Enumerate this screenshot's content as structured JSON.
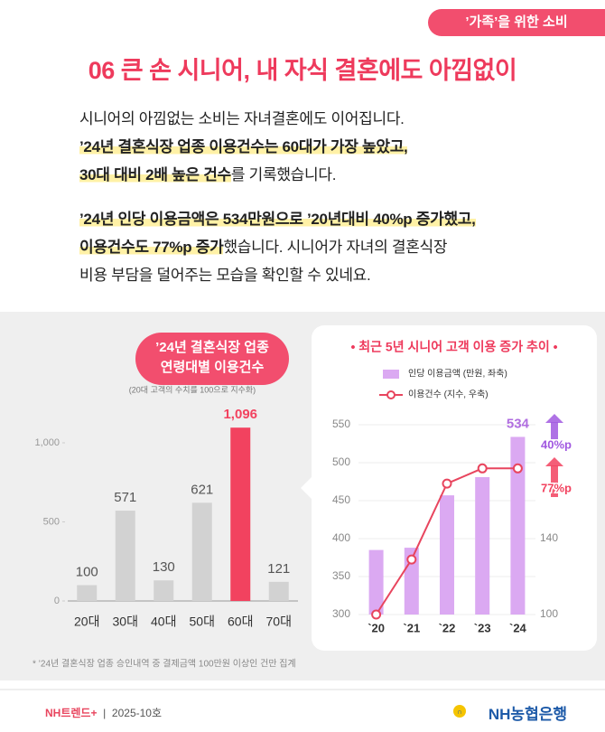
{
  "header": {
    "tag": "’가족’을 위한 소비",
    "title": "06 큰 손 시니어, 내 자식 결혼에도 아낌없이"
  },
  "body": {
    "paragraphs": [
      [
        [
          {
            "text": "시니어의 아낌없는 소비는 자녀결혼에도 이어집니다.",
            "highlight": false
          }
        ],
        [
          {
            "text": "’24년 결혼식장 업종 이용건수는 60대가 가장 높았고,",
            "highlight": true
          }
        ],
        [
          {
            "text": "30대 대비 2배 높은 건수",
            "highlight": true
          },
          {
            "text": "를 기록했습니다.",
            "highlight": false
          }
        ]
      ],
      [
        [
          {
            "text": "’24년 인당 이용금액은 534만원으로 ’20년대비 40%p 증가했고,",
            "highlight": true
          }
        ],
        [
          {
            "text": "이용건수도 77%p 증가",
            "highlight": true
          },
          {
            "text": "했습니다. 시니어가 자녀의 결혼식장",
            "highlight": false
          }
        ],
        [
          {
            "text": "비용 부담을 덜어주는 모습을 확인할 수 있네요.",
            "highlight": false
          }
        ]
      ]
    ]
  },
  "chart_data": [
    {
      "type": "bar",
      "title": [
        "’24년 결혼식장 업종",
        "연령대별 이용건수"
      ],
      "subtitle": "(20대 고객의 수치를 100으로 지수화)",
      "categories": [
        "20대",
        "30대",
        "40대",
        "50대",
        "60대",
        "70대"
      ],
      "values": [
        100,
        571,
        130,
        621,
        1096,
        121
      ],
      "value_labels": [
        "100",
        "571",
        "130",
        "621",
        "1,096",
        "121"
      ],
      "colors": [
        "#d2d2d2",
        "#d2d2d2",
        "#d2d2d2",
        "#d2d2d2",
        "#f2425f",
        "#d2d2d2"
      ],
      "label_colors": [
        "#555555",
        "#555555",
        "#555555",
        "#555555",
        "#f2425f",
        "#555555"
      ],
      "ylim": [
        0,
        1100
      ],
      "yticks": [
        0,
        500,
        {
          "value": 1000,
          "label": "1,000"
        }
      ],
      "grid": false
    },
    {
      "type": "combo",
      "title": "• 최근 5년 시니어 고객 이용 증가 추이 •",
      "categories": [
        "`20",
        "`21",
        "`22",
        "`23",
        "`24"
      ],
      "series": [
        {
          "name": "인당 이용금액 (만원, 좌축)",
          "type": "bar",
          "color": "#dba9f2",
          "values": [
            385,
            388,
            457,
            481,
            534
          ],
          "value_labels": [
            null,
            null,
            null,
            null,
            "534"
          ],
          "label_color": "#b06ee0"
        },
        {
          "name": "이용건수 (지수, 우축)",
          "type": "line",
          "axis": "y2",
          "color": "#e8455e",
          "values": [
            100,
            129,
            169,
            177,
            177
          ]
        }
      ],
      "ylim": [
        300,
        550
      ],
      "yticks": [
        300,
        350,
        400,
        450,
        500,
        550
      ],
      "y2lim": [
        100,
        200
      ],
      "y2ticks": [
        100,
        140
      ],
      "grid": true,
      "annotations": [
        {
          "text": "40%p",
          "color": "#a159e0"
        },
        {
          "text": "77%p",
          "color": "#f2425f"
        }
      ]
    }
  ],
  "footnote": "* ’24년 결혼식장 업종 승인내역 중 결제금액 100만원 이상인 건만 집계",
  "footer": {
    "brand": "NH트렌드+",
    "issue": "2025-10호",
    "bank": "NH농협은행"
  }
}
